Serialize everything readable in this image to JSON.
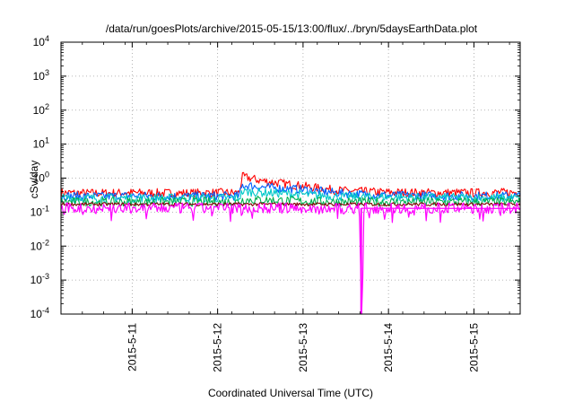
{
  "chart_data": {
    "type": "line",
    "title": "/data/run/goesPlots/archive/2015-05-15/13:00/flux/../bryn/5daysEarthData.plot",
    "xlabel": "Coordinated Universal Time (UTC)",
    "ylabel": "cSv/day",
    "y_scale": "log",
    "ylim": [
      0.0001,
      10000
    ],
    "xlim": [
      "2015-05-10 04:00",
      "2015-05-15 13:00"
    ],
    "grid": true,
    "x_tick_labels": [
      "2015-5-11",
      "2015-5-12",
      "2015-5-13",
      "2015-5-14",
      "2015-5-15"
    ],
    "x_ticks": [
      "2015-05-11",
      "2015-05-12",
      "2015-05-13",
      "2015-05-14",
      "2015-05-15"
    ],
    "y_ticks": [
      {
        "value": 0.0001,
        "base": "10",
        "exp": "-4"
      },
      {
        "value": 0.001,
        "base": "10",
        "exp": "-3"
      },
      {
        "value": 0.01,
        "base": "10",
        "exp": "-2"
      },
      {
        "value": 0.1,
        "base": "10",
        "exp": "-1"
      },
      {
        "value": 1,
        "base": "10",
        "exp": "0"
      },
      {
        "value": 10,
        "base": "10",
        "exp": "1"
      },
      {
        "value": 100,
        "base": "10",
        "exp": "2"
      },
      {
        "value": 1000,
        "base": "10",
        "exp": "3"
      },
      {
        "value": 10000,
        "base": "10",
        "exp": "4"
      }
    ],
    "series": [
      {
        "color": "#ff0000",
        "x": [
          "2015-05-10 04:00",
          "2015-05-10 12:00",
          "2015-05-11 00:00",
          "2015-05-11 12:00",
          "2015-05-12 00:00",
          "2015-05-12 06:00",
          "2015-05-12 07:00",
          "2015-05-12 09:00",
          "2015-05-12 12:00",
          "2015-05-12 18:00",
          "2015-05-13 00:00",
          "2015-05-13 06:00",
          "2015-05-13 12:00",
          "2015-05-14 00:00",
          "2015-05-14 12:00",
          "2015-05-15 00:00",
          "2015-05-15 13:00"
        ],
        "y": [
          0.37,
          0.36,
          0.37,
          0.36,
          0.37,
          0.37,
          1.1,
          1.0,
          0.85,
          0.7,
          0.58,
          0.48,
          0.42,
          0.38,
          0.37,
          0.37,
          0.38
        ]
      },
      {
        "color": "#0060ff",
        "x": [
          "2015-05-10 04:00",
          "2015-05-10 12:00",
          "2015-05-11 00:00",
          "2015-05-11 12:00",
          "2015-05-12 00:00",
          "2015-05-12 06:00",
          "2015-05-12 07:00",
          "2015-05-12 09:00",
          "2015-05-12 12:00",
          "2015-05-12 18:00",
          "2015-05-13 00:00",
          "2015-05-13 06:00",
          "2015-05-13 12:00",
          "2015-05-14 00:00",
          "2015-05-14 12:00",
          "2015-05-15 00:00",
          "2015-05-15 13:00"
        ],
        "y": [
          0.3,
          0.29,
          0.3,
          0.29,
          0.3,
          0.3,
          0.62,
          0.6,
          0.55,
          0.5,
          0.46,
          0.4,
          0.35,
          0.31,
          0.3,
          0.3,
          0.3
        ]
      },
      {
        "color": "#00c8c8",
        "x": [
          "2015-05-10 04:00",
          "2015-05-12 06:00",
          "2015-05-12 07:00",
          "2015-05-12 12:00",
          "2015-05-13 00:00",
          "2015-05-13 12:00",
          "2015-05-15 13:00"
        ],
        "y": [
          0.26,
          0.26,
          0.4,
          0.38,
          0.33,
          0.28,
          0.26
        ]
      },
      {
        "color": "#00b050",
        "x": [
          "2015-05-10 04:00",
          "2015-05-12 06:00",
          "2015-05-12 07:00",
          "2015-05-12 12:00",
          "2015-05-13 00:00",
          "2015-05-13 12:00",
          "2015-05-15 13:00"
        ],
        "y": [
          0.2,
          0.2,
          0.23,
          0.23,
          0.21,
          0.2,
          0.2
        ]
      },
      {
        "color": "#800000",
        "x": [
          "2015-05-10 04:00",
          "2015-05-15 13:00"
        ],
        "y": [
          0.17,
          0.17
        ]
      },
      {
        "color": "#ff00ff",
        "x": [
          "2015-05-10 04:00",
          "2015-05-11 00:00",
          "2015-05-12 00:00",
          "2015-05-13 00:00",
          "2015-05-13 16:00",
          "2015-05-13 16:20",
          "2015-05-13 16:40",
          "2015-05-13 17:00",
          "2015-05-14 00:00",
          "2015-05-15 00:00",
          "2015-05-15 13:00"
        ],
        "y": [
          0.13,
          0.13,
          0.13,
          0.13,
          0.13,
          0.0001,
          0.0001,
          0.13,
          0.13,
          0.13,
          0.13
        ]
      }
    ]
  }
}
